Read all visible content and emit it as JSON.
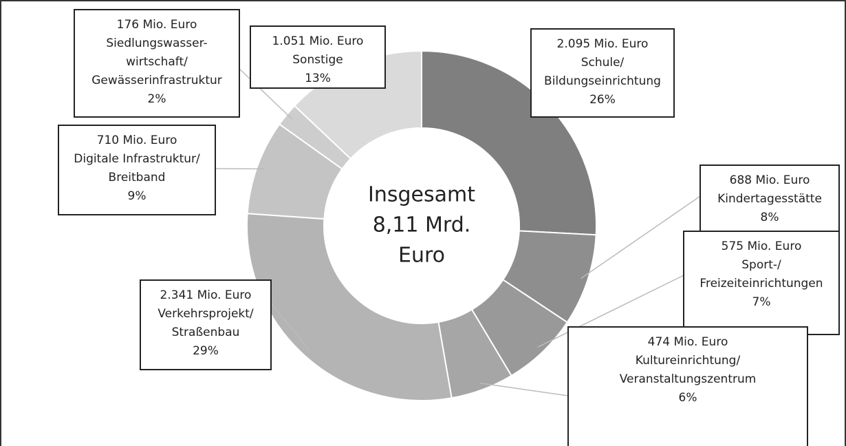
{
  "chart_data": {
    "type": "pie",
    "donut": true,
    "center_label": [
      "Insgesamt",
      "8,11 Mrd.",
      "Euro"
    ],
    "categories": [
      [
        "Schule/",
        "Bildungseinrichtung"
      ],
      [
        "Kindertagesstätte"
      ],
      [
        "Sport-/",
        "Freizeiteinrichtungen"
      ],
      [
        "Kultureinrichtung/",
        "Veranstaltungszentrum"
      ],
      [
        "Verkehrsprojekt/",
        "Straßenbau"
      ],
      [
        "Digitale Infrastruktur/",
        "Breitband"
      ],
      [
        "Siedlungswasser-",
        "wirtschaft/",
        "Gewässerinfrastruktur"
      ],
      [
        "Sonstige"
      ]
    ],
    "values": [
      2095,
      688,
      575,
      474,
      2341,
      710,
      176,
      1051
    ],
    "value_labels": [
      "2.095 Mio. Euro",
      "688 Mio. Euro",
      "575 Mio. Euro",
      "474 Mio. Euro",
      "2.341 Mio. Euro",
      "710 Mio. Euro",
      "176 Mio. Euro",
      "1.051 Mio. Euro"
    ],
    "percent": [
      26,
      8,
      7,
      6,
      29,
      9,
      2,
      13
    ],
    "percent_labels": [
      "26%",
      "8%",
      "7%",
      "6%",
      "29%",
      "9%",
      "2%",
      "13%"
    ],
    "colors": [
      "#7f7f7f",
      "#8e8e8e",
      "#999999",
      "#a6a6a6",
      "#b4b4b4",
      "#c4c4c4",
      "#cdcdcd",
      "#dadada"
    ]
  }
}
